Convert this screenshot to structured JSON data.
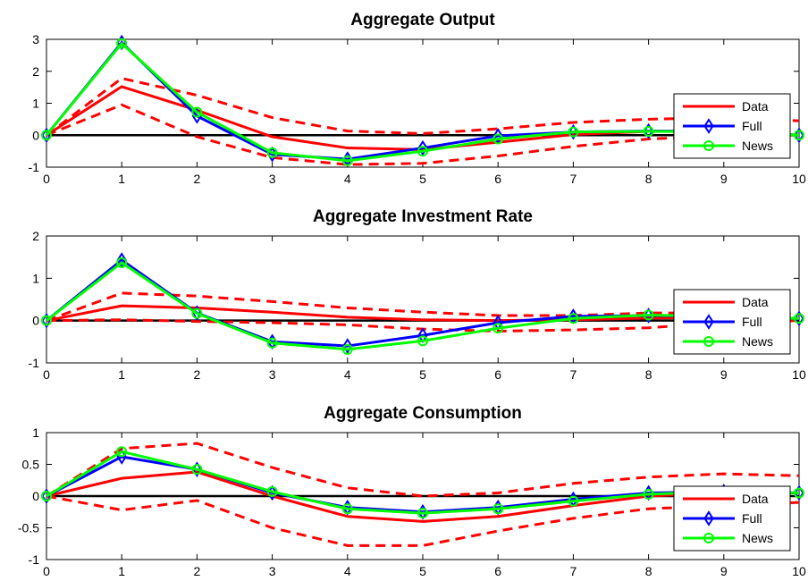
{
  "chart_data": [
    {
      "type": "line",
      "title": "Aggregate Output",
      "xlabel": "",
      "ylabel": "",
      "x": [
        0,
        1,
        2,
        3,
        4,
        5,
        6,
        7,
        8,
        9,
        10
      ],
      "xlim": [
        0,
        10
      ],
      "ylim": [
        -1,
        3
      ],
      "yticks": [
        -1,
        0,
        1,
        2,
        3
      ],
      "xticks": [
        0,
        1,
        2,
        3,
        4,
        5,
        6,
        7,
        8,
        9,
        10
      ],
      "grid": false,
      "legend_position": "right",
      "series": [
        {
          "name": "Data",
          "values": [
            0,
            1.52,
            0.78,
            -0.05,
            -0.4,
            -0.45,
            -0.22,
            0.02,
            0.12,
            0.12,
            0.0
          ],
          "style": "solid",
          "color": "#ff0000"
        },
        {
          "name": "",
          "values": [
            0,
            1.78,
            1.25,
            0.55,
            0.13,
            0.05,
            0.2,
            0.4,
            0.5,
            0.55,
            0.45
          ],
          "style": "dashed",
          "color": "#ff0000"
        },
        {
          "name": "",
          "values": [
            0,
            0.95,
            -0.05,
            -0.7,
            -0.92,
            -0.88,
            -0.65,
            -0.35,
            -0.12,
            -0.02,
            0.0
          ],
          "style": "dashed",
          "color": "#ff0000"
        },
        {
          "name": "Full",
          "values": [
            0,
            2.9,
            0.6,
            -0.6,
            -0.75,
            -0.4,
            -0.02,
            0.1,
            0.13,
            0.12,
            0.0
          ],
          "style": "solid",
          "color": "#0000ff",
          "marker": "diamond"
        },
        {
          "name": "News",
          "values": [
            0,
            2.87,
            0.72,
            -0.55,
            -0.8,
            -0.5,
            -0.12,
            0.1,
            0.12,
            0.1,
            0.0
          ],
          "style": "solid",
          "color": "#00ff00",
          "marker": "circle"
        },
        {
          "name": "",
          "values": [
            0,
            0,
            0,
            0,
            0,
            0,
            0,
            0,
            0,
            0,
            0
          ],
          "style": "solid",
          "color": "#000000",
          "zero_line": true
        }
      ],
      "legend": [
        "Data",
        "Full",
        "News"
      ]
    },
    {
      "type": "line",
      "title": "Aggregate Investment Rate",
      "xlabel": "",
      "ylabel": "",
      "x": [
        0,
        1,
        2,
        3,
        4,
        5,
        6,
        7,
        8,
        9,
        10
      ],
      "xlim": [
        0,
        10
      ],
      "ylim": [
        -1,
        2
      ],
      "yticks": [
        -1,
        0,
        1,
        2
      ],
      "xticks": [
        0,
        1,
        2,
        3,
        4,
        5,
        6,
        7,
        8,
        9,
        10
      ],
      "grid": false,
      "legend_position": "right",
      "series": [
        {
          "name": "Data",
          "values": [
            0,
            0.35,
            0.3,
            0.2,
            0.08,
            0.02,
            0.0,
            0.02,
            0.06,
            0.07,
            0.05
          ],
          "style": "solid",
          "color": "#ff0000"
        },
        {
          "name": "",
          "values": [
            0,
            0.65,
            0.58,
            0.45,
            0.3,
            0.2,
            0.12,
            0.12,
            0.18,
            0.18,
            0.15
          ],
          "style": "dashed",
          "color": "#ff0000"
        },
        {
          "name": "",
          "values": [
            0,
            0.02,
            -0.02,
            -0.05,
            -0.1,
            -0.2,
            -0.25,
            -0.22,
            -0.17,
            -0.05,
            0.0
          ],
          "style": "dashed",
          "color": "#ff0000"
        },
        {
          "name": "Full",
          "values": [
            0,
            1.43,
            0.18,
            -0.5,
            -0.6,
            -0.35,
            -0.05,
            0.1,
            0.12,
            0.1,
            0.05
          ],
          "style": "solid",
          "color": "#0000ff",
          "marker": "diamond"
        },
        {
          "name": "News",
          "values": [
            0,
            1.37,
            0.17,
            -0.53,
            -0.68,
            -0.48,
            -0.18,
            0.05,
            0.13,
            0.1,
            0.05
          ],
          "style": "solid",
          "color": "#00ff00",
          "marker": "circle"
        },
        {
          "name": "",
          "values": [
            0,
            0,
            0,
            0,
            0,
            0,
            0,
            0,
            0,
            0,
            0
          ],
          "style": "solid",
          "color": "#000000",
          "zero_line": true
        }
      ],
      "legend": [
        "Data",
        "Full",
        "News"
      ]
    },
    {
      "type": "line",
      "title": "Aggregate Consumption",
      "xlabel": "",
      "ylabel": "",
      "x": [
        0,
        1,
        2,
        3,
        4,
        5,
        6,
        7,
        8,
        9,
        10
      ],
      "xlim": [
        0,
        10
      ],
      "ylim": [
        -1,
        1
      ],
      "yticks": [
        -1,
        -0.5,
        0,
        0.5,
        1
      ],
      "xticks": [
        0,
        1,
        2,
        3,
        4,
        5,
        6,
        7,
        8,
        9,
        10
      ],
      "grid": false,
      "legend_position": "right",
      "series": [
        {
          "name": "Data",
          "values": [
            0,
            0.28,
            0.38,
            0.0,
            -0.32,
            -0.4,
            -0.32,
            -0.15,
            0.0,
            0.05,
            0.05
          ],
          "style": "solid",
          "color": "#ff0000"
        },
        {
          "name": "",
          "values": [
            0,
            0.75,
            0.83,
            0.45,
            0.13,
            0.0,
            0.05,
            0.2,
            0.3,
            0.35,
            0.32
          ],
          "style": "dashed",
          "color": "#ff0000"
        },
        {
          "name": "",
          "values": [
            0,
            -0.22,
            -0.07,
            -0.5,
            -0.78,
            -0.78,
            -0.55,
            -0.35,
            -0.2,
            -0.15,
            -0.1
          ],
          "style": "dashed",
          "color": "#ff0000"
        },
        {
          "name": "Full",
          "values": [
            0,
            0.62,
            0.42,
            0.05,
            -0.18,
            -0.25,
            -0.18,
            -0.05,
            0.05,
            0.07,
            0.05
          ],
          "style": "solid",
          "color": "#0000ff",
          "marker": "diamond"
        },
        {
          "name": "News",
          "values": [
            0,
            0.7,
            0.42,
            0.07,
            -0.2,
            -0.27,
            -0.2,
            -0.08,
            0.03,
            0.07,
            0.05
          ],
          "style": "solid",
          "color": "#00ff00",
          "marker": "circle"
        },
        {
          "name": "",
          "values": [
            0,
            0,
            0,
            0,
            0,
            0,
            0,
            0,
            0,
            0,
            0
          ],
          "style": "solid",
          "color": "#000000",
          "zero_line": true
        }
      ],
      "legend": [
        "Data",
        "Full",
        "News"
      ]
    }
  ]
}
